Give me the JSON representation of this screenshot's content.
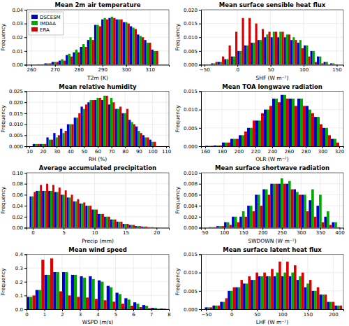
{
  "chart_data": [
    {
      "type": "bar",
      "title": "Mean 2m air temperature",
      "xlabel": "T2m (K)",
      "ylabel": "Frequency",
      "xlim": [
        258,
        318
      ],
      "ylim": [
        0,
        0.04
      ],
      "xticks": [
        260,
        270,
        280,
        290,
        300,
        310
      ],
      "yticks": [
        {
          "value": 0,
          "label": "0.00"
        },
        {
          "value": 0.01,
          "label": "0.01"
        },
        {
          "value": 0.02,
          "label": "0.02"
        },
        {
          "value": 0.03,
          "label": "0.03"
        },
        {
          "value": 0.04,
          "label": "0.04"
        }
      ],
      "grid": true,
      "legend": "upper left",
      "x": [
        261,
        264,
        267,
        270,
        273,
        276,
        279,
        282,
        285,
        288,
        291,
        294,
        297,
        300,
        303,
        306,
        309,
        312
      ],
      "series": [
        {
          "name": "DSCESM",
          "color": "#0000CC",
          "values": [
            0.0001,
            0.0003,
            0.001,
            0.002,
            0.003,
            0.007,
            0.009,
            0.013,
            0.018,
            0.029,
            0.033,
            0.034,
            0.033,
            0.031,
            0.028,
            0.022,
            0.018,
            0.011
          ]
        },
        {
          "name": "IMDAA",
          "color": "#00AA00",
          "values": [
            0.0001,
            0.0003,
            0.001,
            0.002,
            0.004,
            0.008,
            0.011,
            0.015,
            0.02,
            0.029,
            0.034,
            0.035,
            0.033,
            0.031,
            0.027,
            0.021,
            0.016,
            0.01
          ]
        },
        {
          "name": "ERA",
          "color": "#DD0000",
          "values": [
            0.0001,
            0.0003,
            0.001,
            0.002,
            0.003,
            0.006,
            0.009,
            0.013,
            0.018,
            0.028,
            0.033,
            0.034,
            0.033,
            0.03,
            0.026,
            0.02,
            0.016,
            0.01
          ]
        }
      ]
    },
    {
      "type": "bar",
      "title": "Mean surface sensible heat flux",
      "xlabel": "SHF (W m⁻²)",
      "ylabel": "Frequency",
      "xlim": [
        -55,
        160
      ],
      "ylim": [
        0,
        0.02
      ],
      "xticks": [
        {
          "value": -50,
          "label": "−50"
        },
        0,
        50,
        100,
        150
      ],
      "yticks": [
        {
          "value": 0,
          "label": "0.000"
        },
        {
          "value": 0.005,
          "label": "0.005"
        },
        {
          "value": 0.01,
          "label": "0.010"
        },
        {
          "value": 0.015,
          "label": "0.015"
        },
        {
          "value": 0.02,
          "label": "0.020"
        }
      ],
      "grid": true,
      "x": [
        -45,
        -35,
        -25,
        -15,
        -5,
        5,
        15,
        25,
        35,
        45,
        55,
        65,
        75,
        85,
        95,
        105,
        115,
        125,
        135,
        145
      ],
      "series": [
        {
          "color": "#0000CC",
          "values": [
            0.0001,
            0.0005,
            0.001,
            0.002,
            0.003,
            0.005,
            0.007,
            0.008,
            0.009,
            0.01,
            0.01,
            0.01,
            0.01,
            0.009,
            0.008,
            0.007,
            0.005,
            0.003,
            0.001,
            0.0005
          ]
        },
        {
          "color": "#00AA00",
          "values": [
            0.0001,
            0.0005,
            0.001,
            0.002,
            0.003,
            0.005,
            0.007,
            0.008,
            0.009,
            0.011,
            0.012,
            0.012,
            0.011,
            0.01,
            0.009,
            0.007,
            0.005,
            0.003,
            0.001,
            0.0005
          ]
        },
        {
          "color": "#DD0000",
          "values": [
            0.0001,
            0.001,
            0.003,
            0.007,
            0.012,
            0.017,
            0.017,
            0.015,
            0.013,
            0.012,
            0.012,
            0.012,
            0.011,
            0.009,
            0.006,
            0.003,
            0.001,
            0.0005,
            0.0001,
            0.0001
          ]
        }
      ]
    },
    {
      "type": "bar",
      "title": "Mean relative humidity",
      "xlabel": "RH (%)",
      "ylabel": "Frequency",
      "xlim": [
        8,
        112
      ],
      "ylim": [
        0,
        0.025
      ],
      "xticks": [
        10,
        20,
        30,
        40,
        50,
        60,
        70,
        80,
        90,
        100,
        110
      ],
      "yticks": [
        {
          "value": 0,
          "label": "0.000"
        },
        {
          "value": 0.005,
          "label": "0.005"
        },
        {
          "value": 0.01,
          "label": "0.010"
        },
        {
          "value": 0.015,
          "label": "0.015"
        },
        {
          "value": 0.02,
          "label": "0.020"
        },
        {
          "value": 0.025,
          "label": "0.025"
        }
      ],
      "grid": true,
      "x": [
        15,
        20,
        25,
        30,
        35,
        40,
        45,
        50,
        55,
        60,
        65,
        70,
        75,
        80,
        85,
        90,
        95,
        100
      ],
      "series": [
        {
          "color": "#0000CC",
          "values": [
            0.001,
            0.001,
            0.004,
            0.006,
            0.008,
            0.01,
            0.013,
            0.018,
            0.02,
            0.021,
            0.021,
            0.019,
            0.017,
            0.015,
            0.012,
            0.009,
            0.005,
            0.003
          ]
        },
        {
          "color": "#00AA00",
          "values": [
            0.001,
            0.001,
            0.003,
            0.004,
            0.006,
            0.01,
            0.013,
            0.017,
            0.021,
            0.022,
            0.023,
            0.022,
            0.017,
            0.015,
            0.011,
            0.007,
            0.004,
            0.002
          ]
        },
        {
          "color": "#DD0000",
          "values": [
            0.001,
            0.001,
            0.003,
            0.005,
            0.007,
            0.01,
            0.015,
            0.019,
            0.021,
            0.022,
            0.023,
            0.02,
            0.018,
            0.017,
            0.01,
            0.006,
            0.004,
            0.002
          ]
        }
      ]
    },
    {
      "type": "bar",
      "title": "Mean TOA longwave radiation",
      "xlabel": "OLR (W m⁻²)",
      "ylabel": "Frequency",
      "xlim": [
        155,
        325
      ],
      "ylim": [
        0,
        0.015
      ],
      "xticks": [
        160,
        180,
        200,
        220,
        240,
        260,
        280,
        300,
        320
      ],
      "yticks": [
        {
          "value": 0,
          "label": "0.000"
        },
        {
          "value": 0.005,
          "label": "0.005"
        },
        {
          "value": 0.01,
          "label": "0.010"
        },
        {
          "value": 0.015,
          "label": "0.015"
        }
      ],
      "grid": true,
      "x": [
        165,
        175,
        185,
        195,
        205,
        215,
        225,
        235,
        245,
        255,
        265,
        275,
        285,
        295,
        305,
        315
      ],
      "series": [
        {
          "color": "#0000CC",
          "values": [
            0.0001,
            0.0002,
            0.001,
            0.002,
            0.003,
            0.005,
            0.007,
            0.01,
            0.013,
            0.014,
            0.013,
            0.013,
            0.011,
            0.008,
            0.005,
            0.002
          ]
        },
        {
          "color": "#00AA00",
          "values": [
            0.0001,
            0.0002,
            0.001,
            0.002,
            0.003,
            0.005,
            0.007,
            0.01,
            0.013,
            0.014,
            0.013,
            0.013,
            0.01,
            0.008,
            0.005,
            0.002
          ]
        },
        {
          "color": "#DD0000",
          "values": [
            0.0001,
            0.0002,
            0.001,
            0.002,
            0.004,
            0.007,
            0.009,
            0.011,
            0.012,
            0.013,
            0.011,
            0.011,
            0.009,
            0.006,
            0.003,
            0.001
          ]
        }
      ]
    },
    {
      "type": "bar",
      "title": "Average accumulated precipitation",
      "xlabel": "Precip (mm)",
      "ylabel": "Frequency",
      "xlim": [
        -1,
        22
      ],
      "ylim": [
        0,
        0.1
      ],
      "xticks": [
        0,
        5,
        10,
        15,
        20
      ],
      "yticks": [
        {
          "value": 0,
          "label": "0.00"
        },
        {
          "value": 0.02,
          "label": "0.02"
        },
        {
          "value": 0.04,
          "label": "0.04"
        },
        {
          "value": 0.06,
          "label": "0.06"
        },
        {
          "value": 0.08,
          "label": "0.08"
        },
        {
          "value": 0.1,
          "label": "0.10"
        }
      ],
      "grid": true,
      "x": [
        0,
        1,
        2,
        3,
        4,
        5,
        6,
        7,
        8,
        9,
        10,
        11,
        12,
        13,
        14,
        15,
        16,
        17,
        18,
        19,
        20
      ],
      "series": [
        {
          "color": "#0000CC",
          "values": [
            0.057,
            0.067,
            0.067,
            0.067,
            0.065,
            0.06,
            0.055,
            0.048,
            0.044,
            0.04,
            0.033,
            0.025,
            0.02,
            0.015,
            0.011,
            0.007,
            0.005,
            0.003,
            0.002,
            0.001,
            0.0005
          ]
        },
        {
          "color": "#00AA00",
          "values": [
            0.057,
            0.067,
            0.067,
            0.067,
            0.065,
            0.06,
            0.055,
            0.048,
            0.044,
            0.04,
            0.033,
            0.025,
            0.02,
            0.015,
            0.011,
            0.007,
            0.005,
            0.003,
            0.002,
            0.001,
            0.0005
          ]
        },
        {
          "color": "#DD0000",
          "values": [
            0.065,
            0.078,
            0.08,
            0.078,
            0.073,
            0.068,
            0.06,
            0.052,
            0.046,
            0.04,
            0.033,
            0.025,
            0.02,
            0.015,
            0.011,
            0.007,
            0.005,
            0.003,
            0.002,
            0.001,
            0.0005
          ]
        }
      ]
    },
    {
      "type": "bar",
      "title": "Mean surface shortwave radiation",
      "xlabel": "SWDOWN (W m⁻²)",
      "ylabel": "Frequency",
      "xlim": [
        40,
        410
      ],
      "ylim": [
        0,
        0.01
      ],
      "xticks": [
        50,
        100,
        150,
        200,
        250,
        300,
        350,
        400
      ],
      "yticks": [
        {
          "value": 0,
          "label": "0.000"
        },
        {
          "value": 0.002,
          "label": "0.002"
        },
        {
          "value": 0.004,
          "label": "0.004"
        },
        {
          "value": 0.006,
          "label": "0.006"
        },
        {
          "value": 0.008,
          "label": "0.008"
        },
        {
          "value": 0.01,
          "label": "0.010"
        }
      ],
      "grid": true,
      "x": [
        70,
        90,
        110,
        130,
        150,
        170,
        190,
        210,
        230,
        250,
        270,
        290,
        310,
        330,
        350,
        370,
        390
      ],
      "series": [
        {
          "color": "#0000CC",
          "values": [
            0.0001,
            0.0003,
            0.001,
            0.002,
            0.002,
            0.004,
            0.006,
            0.007,
            0.008,
            0.008,
            0.008,
            0.007,
            0.006,
            0.005,
            0.004,
            0.002,
            0.001
          ]
        },
        {
          "color": "#00AA00",
          "values": [
            0.0001,
            0.0003,
            0.001,
            0.002,
            0.003,
            0.004,
            0.006,
            0.007,
            0.008,
            0.009,
            0.0085,
            0.0065,
            0.006,
            0.007,
            0.006,
            0.003,
            0.001
          ]
        },
        {
          "color": "#DD0000",
          "values": [
            0.0001,
            0.0003,
            0.0005,
            0.001,
            0.002,
            0.003,
            0.004,
            0.006,
            0.008,
            0.008,
            0.007,
            0.006,
            0.003,
            0.002,
            0.001,
            0.0005,
            0.0001
          ]
        }
      ]
    },
    {
      "type": "bar",
      "title": "Mean wind speed",
      "xlabel": "WSPD (m/s)",
      "ylabel": "Frequency",
      "xlim": [
        0,
        8
      ],
      "ylim": [
        0,
        0.4
      ],
      "xticks": [
        0,
        1,
        2,
        3,
        4,
        5,
        6,
        7,
        8
      ],
      "yticks": [
        {
          "value": 0,
          "label": "0.0"
        },
        0.1,
        0.2,
        0.3,
        0.4
      ],
      "grid": true,
      "x": [
        0.25,
        0.75,
        1.25,
        1.75,
        2.25,
        2.75,
        3.25,
        3.75,
        4.25,
        4.75,
        5.25,
        5.75,
        6.25,
        6.75,
        7.25,
        7.75
      ],
      "series": [
        {
          "color": "#0000CC",
          "values": [
            0.09,
            0.14,
            0.25,
            0.27,
            0.27,
            0.25,
            0.24,
            0.24,
            0.21,
            0.17,
            0.12,
            0.08,
            0.05,
            0.03,
            0.01,
            0.005
          ]
        },
        {
          "color": "#00AA00",
          "values": [
            0.09,
            0.14,
            0.25,
            0.27,
            0.27,
            0.25,
            0.23,
            0.22,
            0.2,
            0.16,
            0.11,
            0.07,
            0.04,
            0.025,
            0.01,
            0.005
          ]
        },
        {
          "color": "#DD0000",
          "values": [
            0.1,
            0.36,
            0.37,
            0.13,
            0.1,
            0.09,
            0.085,
            0.075,
            0.065,
            0.055,
            0.04,
            0.025,
            0.015,
            0.008,
            0.003,
            0.001
          ]
        }
      ]
    },
    {
      "type": "bar",
      "title": "Mean surface latent heat flux",
      "xlabel": "LHF (W m⁻²)",
      "ylabel": "Frequency",
      "xlim": [
        -60,
        220
      ],
      "ylim": [
        0,
        0.015
      ],
      "xticks": [
        {
          "value": -50,
          "label": "−50"
        },
        0,
        50,
        100,
        150,
        200
      ],
      "yticks": [
        {
          "value": 0,
          "label": "0.000"
        },
        {
          "value": 0.005,
          "label": "0.005"
        },
        {
          "value": 0.01,
          "label": "0.010"
        },
        {
          "value": 0.015,
          "label": "0.015"
        }
      ],
      "grid": true,
      "x": [
        -45,
        -30,
        -15,
        0,
        15,
        30,
        45,
        60,
        75,
        90,
        105,
        120,
        135,
        150,
        165,
        180,
        195,
        210
      ],
      "series": [
        {
          "color": "#0000CC",
          "values": [
            0.0005,
            0.001,
            0.002,
            0.005,
            0.006,
            0.007,
            0.008,
            0.009,
            0.009,
            0.009,
            0.009,
            0.009,
            0.008,
            0.006,
            0.005,
            0.004,
            0.002,
            0.001
          ]
        },
        {
          "color": "#00AA00",
          "values": [
            0.0005,
            0.001,
            0.002,
            0.005,
            0.006,
            0.007,
            0.008,
            0.009,
            0.009,
            0.01,
            0.01,
            0.01,
            0.009,
            0.007,
            0.005,
            0.004,
            0.002,
            0.001
          ]
        },
        {
          "color": "#DD0000",
          "values": [
            0.0005,
            0.001,
            0.003,
            0.006,
            0.008,
            0.009,
            0.01,
            0.01,
            0.011,
            0.013,
            0.013,
            0.012,
            0.01,
            0.008,
            0.006,
            0.004,
            0.002,
            0.001
          ]
        }
      ]
    }
  ]
}
